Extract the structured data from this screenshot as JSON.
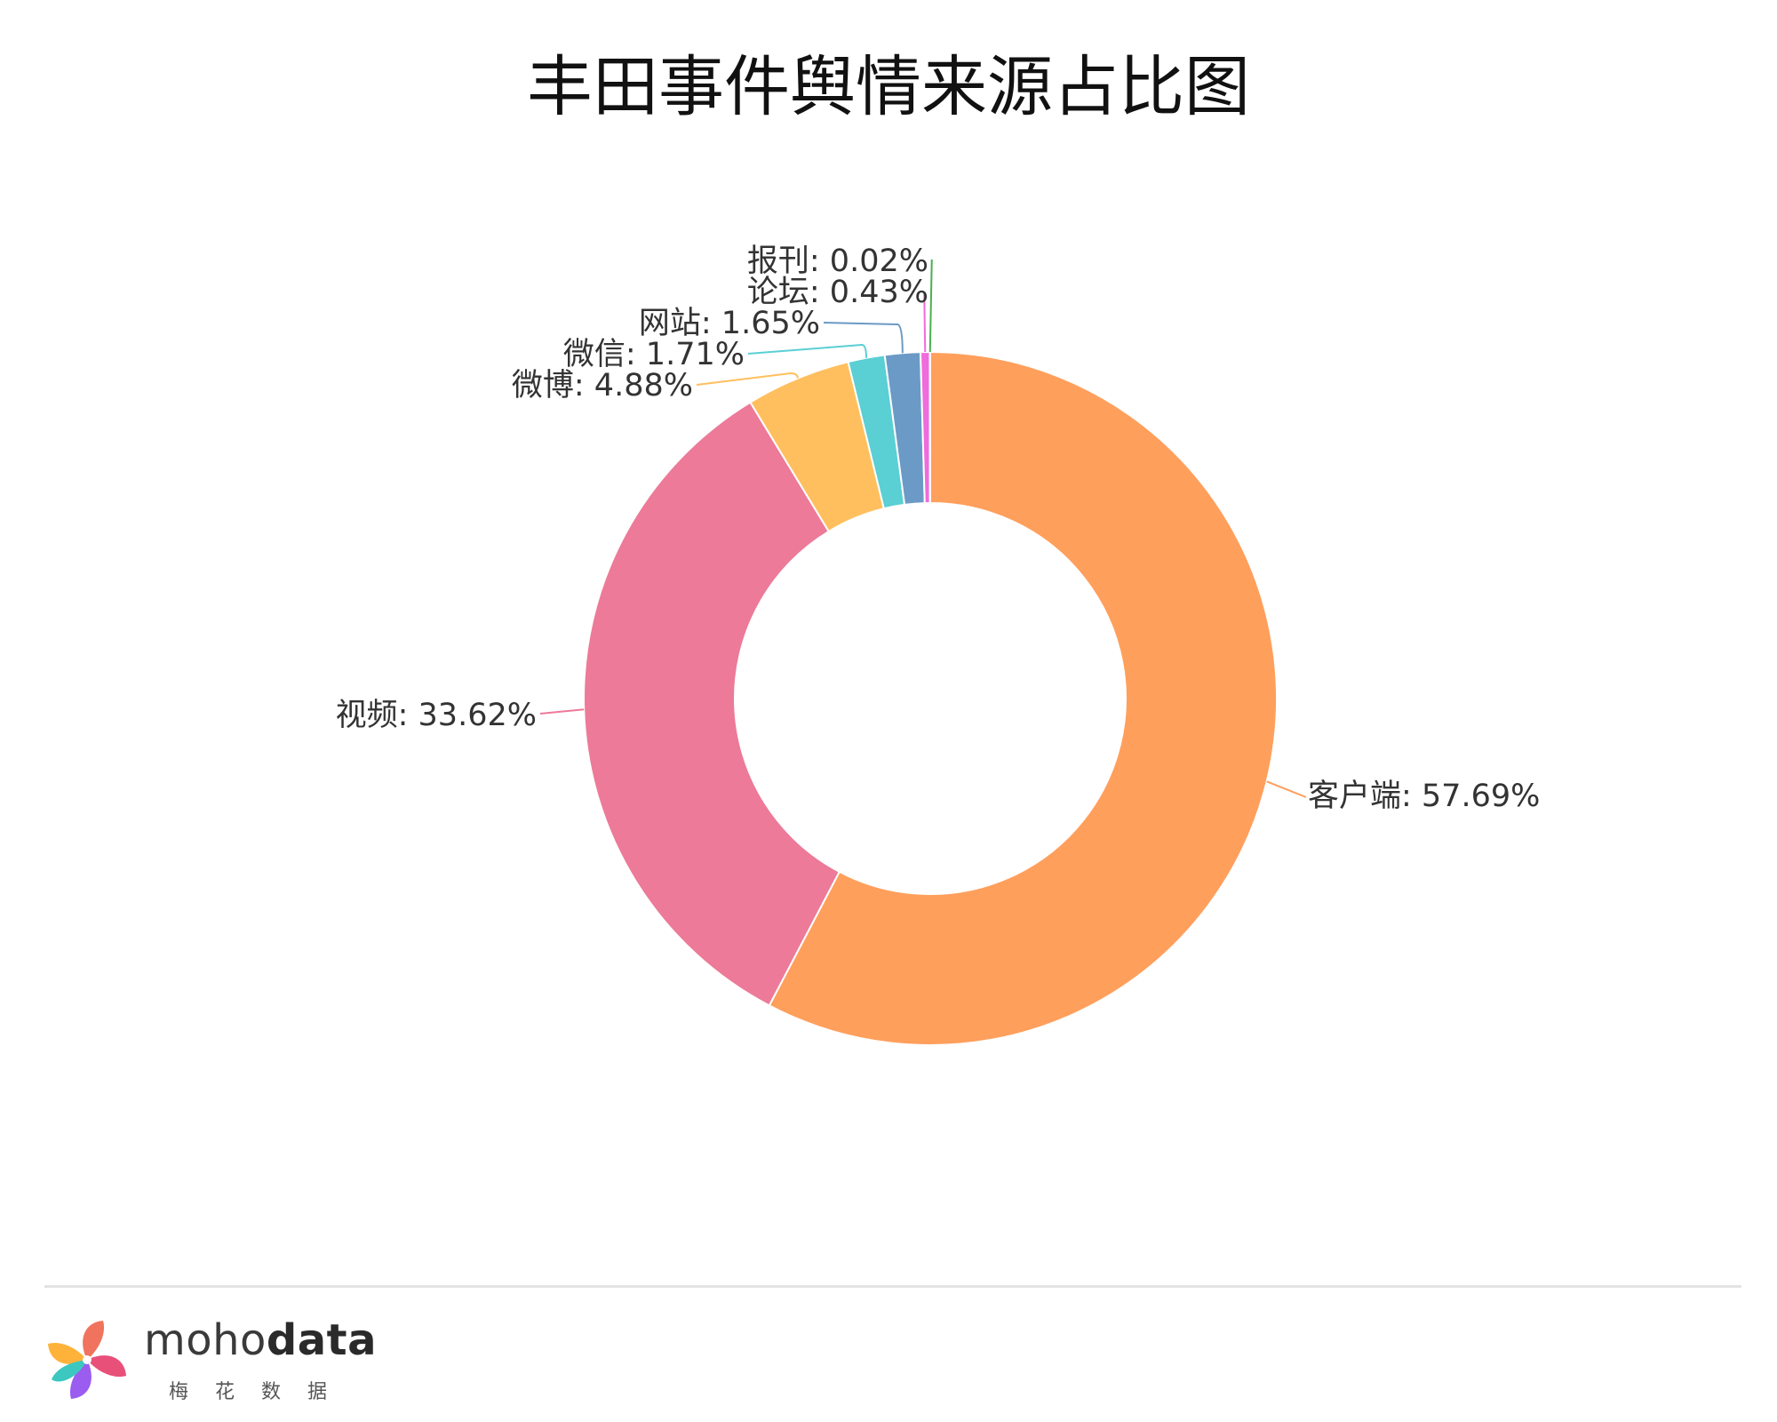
{
  "chart_data": {
    "type": "pie",
    "donut": true,
    "title": "丰田事件舆情来源占比图",
    "slices": [
      {
        "label": "客户端",
        "value": 57.69,
        "display": "57.69%",
        "color": "#FF9F5C"
      },
      {
        "label": "视频",
        "value": 33.62,
        "display": "33.62%",
        "color": "#EC7A98"
      },
      {
        "label": "微博",
        "value": 4.88,
        "display": "4.88%",
        "color": "#FFBF5E"
      },
      {
        "label": "微信",
        "value": 1.71,
        "display": "1.71%",
        "color": "#5ACFD4"
      },
      {
        "label": "网站",
        "value": 1.65,
        "display": "1.65%",
        "color": "#6B9AC6"
      },
      {
        "label": "论坛",
        "value": 0.43,
        "display": "0.43%",
        "color": "#F06BDB"
      },
      {
        "label": "报刊",
        "value": 0.02,
        "display": "0.02%",
        "color": "#4CAF50"
      }
    ],
    "legend": "none"
  },
  "brand": {
    "wordmark_light": "moho",
    "wordmark_bold": "data",
    "subtitle": "梅花数据"
  }
}
